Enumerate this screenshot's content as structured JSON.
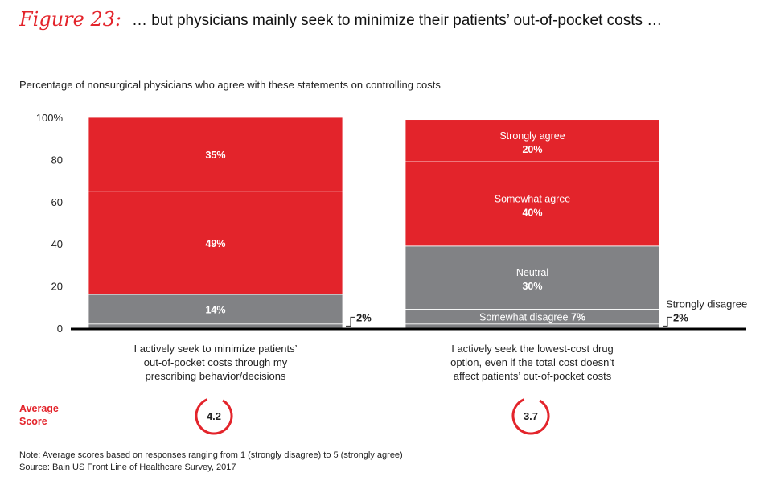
{
  "header": {
    "figure_label": "Figure 23:",
    "title": "… but physicians mainly seek to minimize their patients’ out-of-pocket costs …"
  },
  "subtitle": "Percentage of nonsurgical physicians who agree with these statements on controlling costs",
  "colors": {
    "red": "#e3242b",
    "gray": "#818285",
    "axis": "#000000"
  },
  "chart_data": {
    "type": "bar",
    "stacked": true,
    "ylim": [
      0,
      100
    ],
    "yticks": [
      "100%",
      "80",
      "60",
      "40",
      "20",
      "0"
    ],
    "categories": [
      [
        "I actively seek to minimize patients’",
        "out-of-pocket costs through my",
        "prescribing behavior/decisions"
      ],
      [
        "I actively seek the lowest-cost drug",
        "option, even if the total cost doesn’t",
        "affect patients’ out-of-pocket costs"
      ]
    ],
    "series": [
      {
        "name": "Strongly disagree",
        "color": "#818285",
        "values": [
          2,
          2
        ],
        "labels": [
          "2%",
          "2%"
        ]
      },
      {
        "name": "Somewhat disagree",
        "color": "#818285",
        "values": [
          0,
          7
        ],
        "labels": [
          "",
          "7%"
        ]
      },
      {
        "name": "Neutral",
        "color": "#818285",
        "values": [
          14,
          30
        ],
        "labels": [
          "14%",
          "30%"
        ]
      },
      {
        "name": "Somewhat agree",
        "color": "#e3242b",
        "values": [
          49,
          40
        ],
        "labels": [
          "49%",
          "40%"
        ]
      },
      {
        "name": "Strongly agree",
        "color": "#e3242b",
        "values": [
          35,
          20
        ],
        "labels": [
          "35%",
          "20%"
        ]
      }
    ],
    "show_series_names_on": 1
  },
  "average_score": {
    "title_line1": "Average",
    "title_line2": "Score",
    "values": [
      "4.2",
      "3.7"
    ]
  },
  "footer": {
    "note": "Note: Average scores based on responses ranging from 1 (strongly disagree) to 5 (strongly agree)",
    "source": "Source: Bain US Front Line of Healthcare Survey, 2017"
  }
}
